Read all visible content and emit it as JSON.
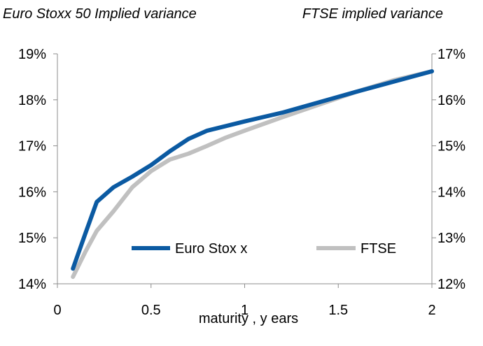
{
  "chart_data": {
    "type": "line",
    "title_left": "Euro Stoxx 50 Implied variance",
    "title_right": "FTSE implied variance",
    "xlabel": "maturity , y ears",
    "xlim": [
      0,
      2
    ],
    "x_ticks": [
      0,
      0.5,
      1,
      1.5,
      2
    ],
    "x_tick_labels": [
      "0",
      "0.5",
      "1",
      "1.5",
      "2"
    ],
    "ylim_left": [
      0.14,
      0.19
    ],
    "y_ticks_left": [
      0.14,
      0.15,
      0.16,
      0.17,
      0.18,
      0.19
    ],
    "y_tick_labels_left": [
      "14%",
      "15%",
      "16%",
      "17%",
      "18%",
      "19%"
    ],
    "ylim_right": [
      0.12,
      0.17
    ],
    "y_ticks_right": [
      0.12,
      0.13,
      0.14,
      0.15,
      0.16,
      0.17
    ],
    "y_tick_labels_right": [
      "12%",
      "13%",
      "14%",
      "15%",
      "16%",
      "17%"
    ],
    "grid": false,
    "legend_position": "center",
    "series": [
      {
        "name": "Euro Stox x",
        "axis": "left",
        "color": "#0b5aa2",
        "x": [
          0.083,
          0.15,
          0.21,
          0.3,
          0.4,
          0.5,
          0.6,
          0.7,
          0.8,
          0.9,
          1.0,
          1.2,
          1.4,
          1.6,
          1.8,
          2.0
        ],
        "y": [
          0.1433,
          0.151,
          0.1578,
          0.161,
          0.1633,
          0.1658,
          0.1688,
          0.1715,
          0.1733,
          0.1743,
          0.1753,
          0.1772,
          0.1795,
          0.1818,
          0.184,
          0.1862
        ]
      },
      {
        "name": "FTSE",
        "axis": "right",
        "color": "#c0c0c0",
        "x": [
          0.083,
          0.15,
          0.21,
          0.3,
          0.4,
          0.5,
          0.6,
          0.7,
          0.8,
          0.9,
          1.0,
          1.2,
          1.4,
          1.6,
          1.8,
          2.0
        ],
        "y": [
          0.1215,
          0.127,
          0.1315,
          0.1358,
          0.141,
          0.1445,
          0.147,
          0.1483,
          0.15,
          0.1518,
          0.1533,
          0.1562,
          0.159,
          0.1618,
          0.1643,
          0.1662
        ]
      }
    ]
  }
}
